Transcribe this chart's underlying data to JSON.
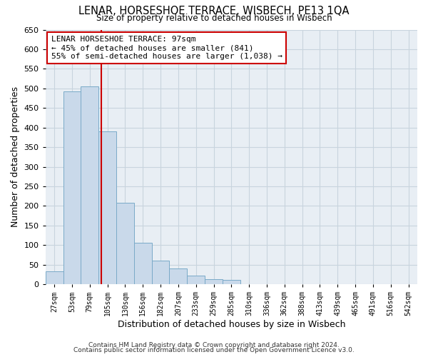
{
  "title": "LENAR, HORSESHOE TERRACE, WISBECH, PE13 1QA",
  "subtitle": "Size of property relative to detached houses in Wisbech",
  "xlabel": "Distribution of detached houses by size in Wisbech",
  "ylabel": "Number of detached properties",
  "bin_labels": [
    "27sqm",
    "53sqm",
    "79sqm",
    "105sqm",
    "130sqm",
    "156sqm",
    "182sqm",
    "207sqm",
    "233sqm",
    "259sqm",
    "285sqm",
    "310sqm",
    "336sqm",
    "362sqm",
    "388sqm",
    "413sqm",
    "439sqm",
    "465sqm",
    "491sqm",
    "516sqm",
    "542sqm"
  ],
  "bar_values": [
    33,
    492,
    505,
    390,
    208,
    106,
    61,
    40,
    22,
    13,
    12,
    0,
    0,
    0,
    0,
    0,
    0,
    0,
    1,
    0,
    1
  ],
  "bar_color": "#c9d9ea",
  "bar_edge_color": "#7aaac8",
  "property_line_bin_index": 2.648,
  "line_color": "#cc0000",
  "annotation_title": "LENAR HORSESHOE TERRACE: 97sqm",
  "annotation_line1": "← 45% of detached houses are smaller (841)",
  "annotation_line2": "55% of semi-detached houses are larger (1,038) →",
  "annotation_box_color": "#ffffff",
  "annotation_box_edge": "#cc0000",
  "ylim": [
    0,
    650
  ],
  "yticks": [
    0,
    50,
    100,
    150,
    200,
    250,
    300,
    350,
    400,
    450,
    500,
    550,
    600,
    650
  ],
  "footer_line1": "Contains HM Land Registry data © Crown copyright and database right 2024.",
  "footer_line2": "Contains public sector information licensed under the Open Government Licence v3.0.",
  "bg_color": "#ffffff",
  "plot_bg_color": "#e8eef4",
  "grid_color": "#c8d4de"
}
